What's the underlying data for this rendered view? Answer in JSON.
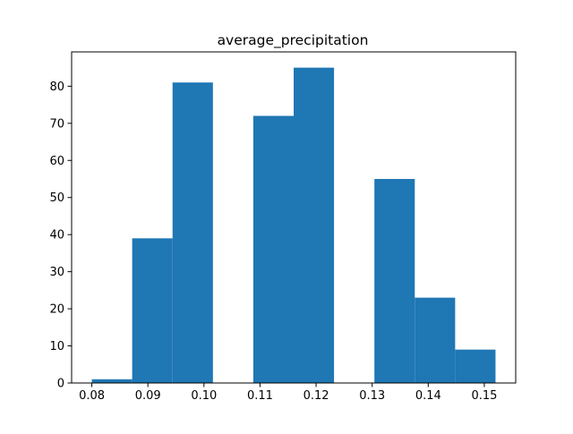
{
  "chart_data": {
    "type": "bar",
    "title": "average_precipitation",
    "xlabel": "",
    "ylabel": "",
    "bin_edges": [
      0.08,
      0.0872,
      0.0944,
      0.1016,
      0.1088,
      0.116,
      0.1232,
      0.1304,
      0.1376,
      0.1448,
      0.152
    ],
    "values": [
      1,
      39,
      81,
      0,
      72,
      85,
      0,
      55,
      23,
      9
    ],
    "xlim": [
      0.0764,
      0.1556
    ],
    "ylim": [
      0,
      89.25
    ],
    "xticks": [
      0.08,
      0.09,
      0.1,
      0.11,
      0.12,
      0.13,
      0.14,
      0.15
    ],
    "xtick_labels": [
      "0.08",
      "0.09",
      "0.10",
      "0.11",
      "0.12",
      "0.13",
      "0.14",
      "0.15"
    ],
    "yticks": [
      0,
      10,
      20,
      30,
      40,
      50,
      60,
      70,
      80
    ],
    "ytick_labels": [
      "0",
      "10",
      "20",
      "30",
      "40",
      "50",
      "60",
      "70",
      "80"
    ],
    "bar_color": "#1f77b4",
    "grid": false,
    "legend": "none"
  }
}
